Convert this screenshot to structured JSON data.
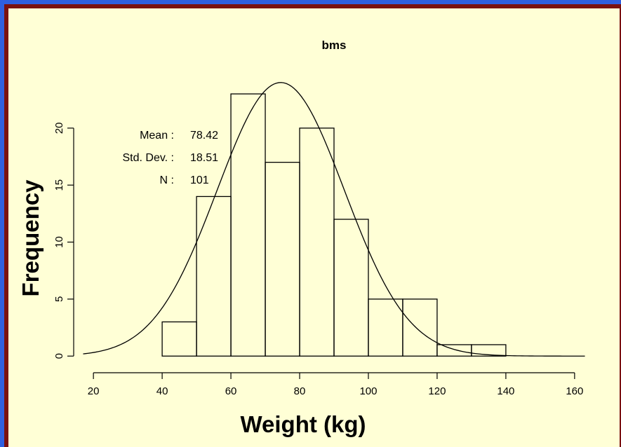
{
  "colors": {
    "page_background": "#2f5fe0",
    "frame": "#7a1010",
    "panel": "#ffffd6",
    "ink": "#000000"
  },
  "chart_data": {
    "type": "bar",
    "subtype": "histogram",
    "title": "bms",
    "xlabel": "Weight (kg)",
    "ylabel": "Frequency",
    "bins": [
      {
        "from": 40,
        "to": 50,
        "count": 3
      },
      {
        "from": 50,
        "to": 60,
        "count": 14
      },
      {
        "from": 60,
        "to": 70,
        "count": 23
      },
      {
        "from": 70,
        "to": 80,
        "count": 17
      },
      {
        "from": 80,
        "to": 90,
        "count": 20
      },
      {
        "from": 90,
        "to": 100,
        "count": 12
      },
      {
        "from": 100,
        "to": 110,
        "count": 5
      },
      {
        "from": 110,
        "to": 120,
        "count": 5
      },
      {
        "from": 120,
        "to": 130,
        "count": 1
      },
      {
        "from": 130,
        "to": 140,
        "count": 1
      }
    ],
    "xticks": [
      20,
      40,
      60,
      80,
      100,
      120,
      140,
      160
    ],
    "yticks": [
      0,
      5,
      10,
      15,
      20
    ],
    "xlim": [
      16.5,
      163.5
    ],
    "ylim": [
      -0.6,
      24.6
    ],
    "grid": false,
    "density_curve": {
      "type": "normal",
      "x_range": [
        17,
        163
      ],
      "peak_x": 74.5,
      "peak_y": 24
    },
    "stats": [
      {
        "label": "Mean :",
        "value": "78.42"
      },
      {
        "label": "Std. Dev. :",
        "value": "18.51"
      },
      {
        "label": "N :",
        "value": "101"
      }
    ]
  }
}
